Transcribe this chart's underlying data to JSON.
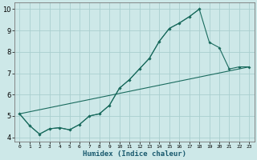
{
  "xlabel": "Humidex (Indice chaleur)",
  "bg_color": "#cde8e8",
  "grid_color": "#aacfcf",
  "line_color": "#1a6b5e",
  "line1_x": [
    0,
    1,
    2,
    3,
    4,
    5,
    6,
    7,
    8,
    9,
    10,
    11,
    12,
    13,
    14,
    15,
    16,
    17,
    18
  ],
  "line1_y": [
    5.1,
    4.55,
    4.15,
    4.4,
    4.45,
    4.35,
    4.6,
    5.0,
    5.1,
    5.5,
    6.3,
    6.7,
    7.2,
    7.7,
    8.5,
    9.1,
    9.35,
    9.65,
    10.0
  ],
  "line2_x": [
    0,
    1,
    2,
    3,
    4,
    5,
    6,
    7,
    8,
    9,
    10,
    11,
    12,
    13,
    14,
    15,
    16,
    17,
    18,
    19,
    20,
    21,
    22,
    23
  ],
  "line2_y": [
    5.1,
    4.55,
    4.15,
    4.4,
    4.45,
    4.35,
    4.6,
    5.0,
    5.1,
    5.5,
    6.3,
    6.7,
    7.2,
    7.7,
    8.5,
    9.1,
    9.35,
    9.65,
    10.0,
    8.45,
    8.2,
    7.2,
    7.3,
    7.3
  ],
  "line3_x": [
    0,
    23
  ],
  "line3_y": [
    5.1,
    7.3
  ],
  "xlim": [
    -0.5,
    23.5
  ],
  "ylim": [
    3.8,
    10.3
  ],
  "yticks": [
    4,
    5,
    6,
    7,
    8,
    9,
    10
  ],
  "xtick_labels": [
    "0",
    "1",
    "2",
    "3",
    "4",
    "5",
    "6",
    "7",
    "8",
    "9",
    "10",
    "11",
    "12",
    "13",
    "14",
    "15",
    "16",
    "17",
    "18",
    "19",
    "20",
    "21",
    "22",
    "23"
  ]
}
